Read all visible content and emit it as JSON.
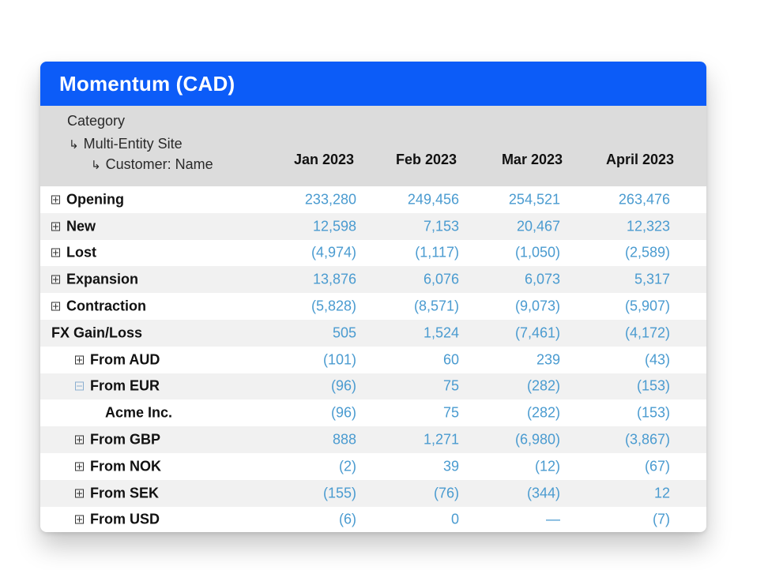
{
  "title": "Momentum (CAD)",
  "header": {
    "category": "Category",
    "sub1": "Multi-Entity Site",
    "sub2": "Customer: Name",
    "columns": [
      "Jan 2023",
      "Feb 2023",
      "Mar 2023",
      "April 2023"
    ]
  },
  "rows": [
    {
      "label": "Opening",
      "values": [
        "233,280",
        "249,456",
        "254,521",
        "263,476"
      ]
    },
    {
      "label": "New",
      "values": [
        "12,598",
        "7,153",
        "20,467",
        "12,323"
      ]
    },
    {
      "label": "Lost",
      "values": [
        "(4,974)",
        "(1,117)",
        "(1,050)",
        "(2,589)"
      ]
    },
    {
      "label": "Expansion",
      "values": [
        "13,876",
        "6,076",
        "6,073",
        "5,317"
      ]
    },
    {
      "label": "Contraction",
      "values": [
        "(5,828)",
        "(8,571)",
        "(9,073)",
        "(5,907)"
      ]
    },
    {
      "label": "FX Gain/Loss",
      "values": [
        "505",
        "1,524",
        "(7,461)",
        "(4,172)"
      ]
    },
    {
      "label": "From AUD",
      "values": [
        "(101)",
        "60",
        "239",
        "(43)"
      ]
    },
    {
      "label": "From EUR",
      "values": [
        "(96)",
        "75",
        "(282)",
        "(153)"
      ]
    },
    {
      "label": "Acme Inc.",
      "values": [
        "(96)",
        "75",
        "(282)",
        "(153)"
      ]
    },
    {
      "label": "From GBP",
      "values": [
        "888",
        "1,271",
        "(6,980)",
        "(3,867)"
      ]
    },
    {
      "label": "From NOK",
      "values": [
        "(2)",
        "39",
        "(12)",
        "(67)"
      ]
    },
    {
      "label": "From SEK",
      "values": [
        "(155)",
        "(76)",
        "(344)",
        "12"
      ]
    },
    {
      "label": "From USD",
      "values": [
        "(6)",
        "0",
        "—",
        "(7)"
      ]
    }
  ]
}
